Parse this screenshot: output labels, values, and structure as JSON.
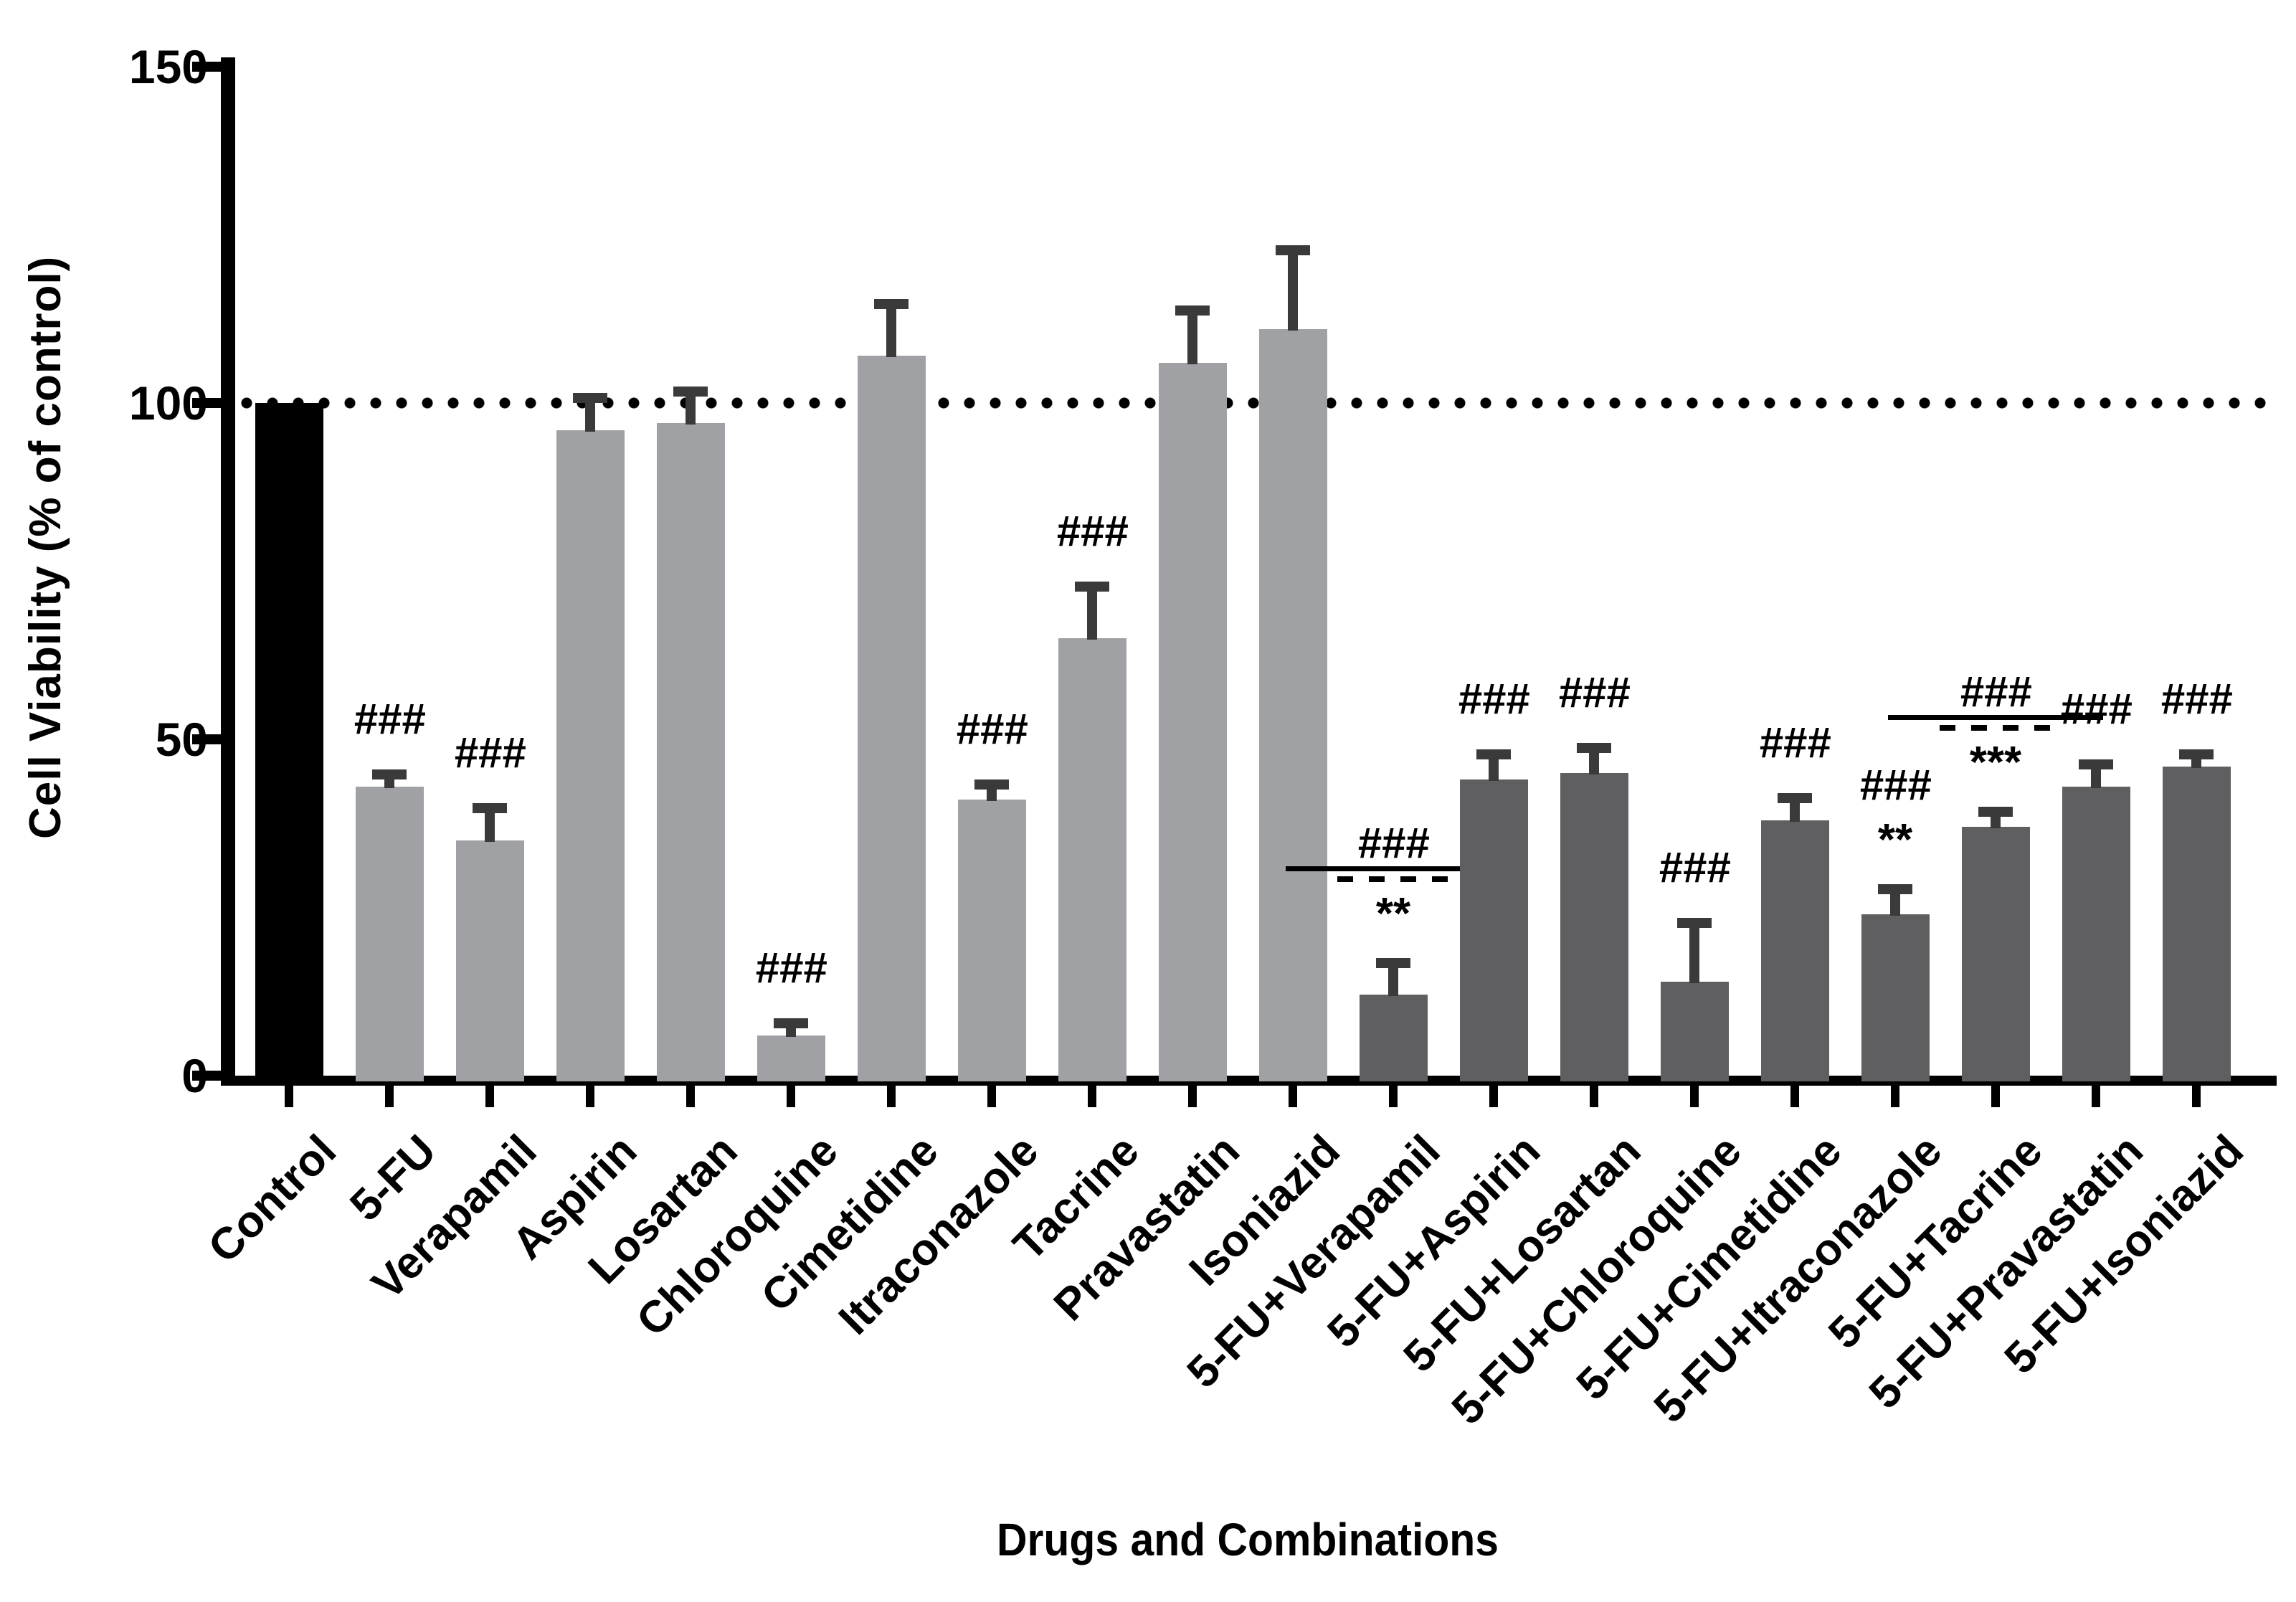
{
  "chart_data": {
    "type": "bar",
    "title": "",
    "xlabel": "Drugs and Combinations",
    "ylabel": "Cell Viability (% of control)",
    "ylim": [
      0,
      150
    ],
    "yticks": [
      0,
      50,
      100,
      150
    ],
    "reference_line": 100,
    "grid": false,
    "legend_position": "none",
    "colors": {
      "control_bar": "#000000",
      "single_drug_bar": "#a0a1a5",
      "combo_drug_bar": "#5f5f61",
      "error_bar": "#3a3a3a",
      "axis": "#000000",
      "background": "#ffffff"
    },
    "bars": [
      {
        "label": "Control",
        "value": 100,
        "error": 0,
        "group": "control",
        "hash": "",
        "stars": "",
        "hash_underline": false,
        "dashed_line": false
      },
      {
        "label": "5-FU",
        "value": 43,
        "error": 1,
        "group": "single",
        "hash": "###",
        "stars": "",
        "hash_underline": false,
        "dashed_line": false
      },
      {
        "label": "Verapamil",
        "value": 35,
        "error": 4,
        "group": "single",
        "hash": "###",
        "stars": "",
        "hash_underline": false,
        "dashed_line": false
      },
      {
        "label": "Aspirin",
        "value": 96,
        "error": 4,
        "group": "single",
        "hash": "",
        "stars": "",
        "hash_underline": false,
        "dashed_line": false
      },
      {
        "label": "Losartan",
        "value": 97,
        "error": 4,
        "group": "single",
        "hash": "",
        "stars": "",
        "hash_underline": false,
        "dashed_line": false
      },
      {
        "label": "Chloroquine",
        "value": 6,
        "error": 1,
        "group": "single",
        "hash": "###",
        "stars": "",
        "hash_underline": false,
        "dashed_line": false
      },
      {
        "label": "Cimetidine",
        "value": 107,
        "error": 7,
        "group": "single",
        "hash": "",
        "stars": "",
        "hash_underline": false,
        "dashed_line": false
      },
      {
        "label": "Itraconazole",
        "value": 41,
        "error": 1.5,
        "group": "single",
        "hash": "###",
        "stars": "",
        "hash_underline": false,
        "dashed_line": false
      },
      {
        "label": "Tacrine",
        "value": 65,
        "error": 7,
        "group": "single",
        "hash": "###",
        "stars": "",
        "hash_underline": false,
        "dashed_line": false
      },
      {
        "label": "Pravastatin",
        "value": 106,
        "error": 7,
        "group": "single",
        "hash": "",
        "stars": "",
        "hash_underline": false,
        "dashed_line": false
      },
      {
        "label": "Isoniazid",
        "value": 111,
        "error": 11,
        "group": "single",
        "hash": "",
        "stars": "",
        "hash_underline": false,
        "dashed_line": false
      },
      {
        "label": "5-FU+Verapamil",
        "value": 12,
        "error": 4,
        "group": "combo",
        "hash": "###",
        "stars": "**",
        "hash_underline": true,
        "dashed_line": true
      },
      {
        "label": "5-FU+Aspirin",
        "value": 44,
        "error": 3,
        "group": "combo",
        "hash": "###",
        "stars": "",
        "hash_underline": false,
        "dashed_line": false
      },
      {
        "label": "5-FU+Losartan",
        "value": 45,
        "error": 3,
        "group": "combo",
        "hash": "###",
        "stars": "",
        "hash_underline": false,
        "dashed_line": false
      },
      {
        "label": "5-FU+Chloroquine",
        "value": 14,
        "error": 8,
        "group": "combo",
        "hash": "###",
        "stars": "",
        "hash_underline": false,
        "dashed_line": false
      },
      {
        "label": "5-FU+Cimetidine",
        "value": 38,
        "error": 2.5,
        "group": "combo",
        "hash": "###",
        "stars": "",
        "hash_underline": false,
        "dashed_line": false
      },
      {
        "label": "5-FU+Itraconazole",
        "value": 24,
        "error": 3,
        "group": "combo",
        "hash": "###",
        "stars": "**",
        "hash_underline": false,
        "dashed_line": false
      },
      {
        "label": "5-FU+Tacrine",
        "value": 37,
        "error": 1.5,
        "group": "combo",
        "hash": "###",
        "stars": "***",
        "hash_underline": true,
        "dashed_line": true
      },
      {
        "label": "5-FU+Pravastatin",
        "value": 43,
        "error": 2.5,
        "group": "combo",
        "hash": "###",
        "stars": "",
        "hash_underline": false,
        "dashed_line": false
      },
      {
        "label": "5-FU+Isoniazid",
        "value": 46,
        "error": 1,
        "group": "combo",
        "hash": "###",
        "stars": "",
        "hash_underline": false,
        "dashed_line": false
      }
    ]
  }
}
